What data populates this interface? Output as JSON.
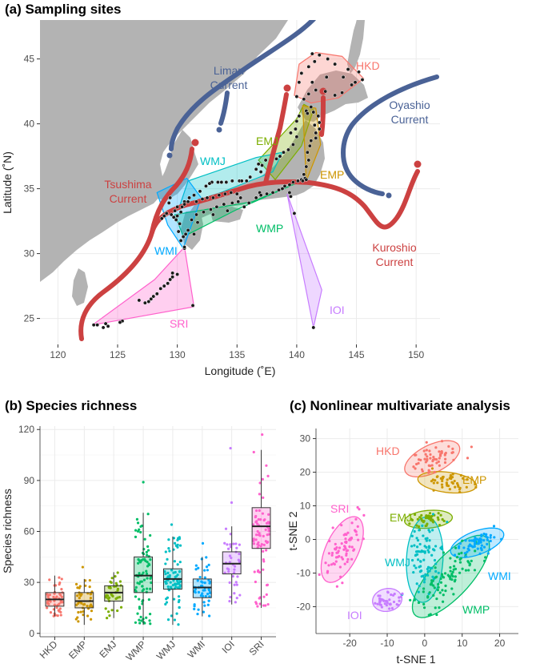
{
  "panels": {
    "a_title": "(a) Sampling sites",
    "b_title": "(b) Species richness",
    "c_title": "(c) Nonlinear multivariate analysis"
  },
  "colors": {
    "HKD": "#f8766d",
    "EMP": "#cd9600",
    "EMJ": "#7cae00",
    "WMP": "#00be67",
    "WMJ": "#00bfc4",
    "WMI": "#00a9ff",
    "IOI": "#c77cff",
    "SRI": "#ff61cc",
    "current_warm": "#cc4141",
    "current_cold": "#4a6296",
    "land": "#b3b3b3"
  },
  "chart_data": [
    {
      "type": "scatter",
      "panel": "a",
      "title": "(a) Sampling sites",
      "xlabel": "Longitude (˚E)",
      "ylabel": "Latitude (˚N)",
      "xlim": [
        118.5,
        152
      ],
      "ylim": [
        23,
        48
      ],
      "xticks": [
        120,
        125,
        130,
        135,
        140,
        145,
        150
      ],
      "yticks": [
        25,
        30,
        35,
        40,
        45
      ],
      "grid": true,
      "regions": [
        {
          "name": "HKD",
          "polygon": [
            [
              139.8,
              42.2
            ],
            [
              140.2,
              44.6
            ],
            [
              141.6,
              45.5
            ],
            [
              143.8,
              45.2
            ],
            [
              145.6,
              43.5
            ],
            [
              143.5,
              42.0
            ],
            [
              141.2,
              41.6
            ]
          ]
        },
        {
          "name": "EMJ",
          "polygon": [
            [
              136.8,
              37.2
            ],
            [
              140.0,
              40.4
            ],
            [
              140.6,
              41.5
            ],
            [
              141.4,
              41.1
            ],
            [
              140.4,
              38.3
            ],
            [
              138.2,
              35.7
            ]
          ]
        },
        {
          "name": "EMP",
          "polygon": [
            [
              140.5,
              41.4
            ],
            [
              141.6,
              41.2
            ],
            [
              142.0,
              38.4
            ],
            [
              140.8,
              35.6
            ]
          ]
        },
        {
          "name": "WMJ",
          "polygon": [
            [
              130.1,
              33.4
            ],
            [
              130.9,
              35.6
            ],
            [
              136.6,
              37.4
            ],
            [
              138.8,
              37.8
            ],
            [
              138.0,
              36.3
            ]
          ]
        },
        {
          "name": "WMP",
          "polygon": [
            [
              129.8,
              33.0
            ],
            [
              130.5,
              31.3
            ],
            [
              135.0,
              33.4
            ],
            [
              140.9,
              35.8
            ],
            [
              136.3,
              34.0
            ]
          ]
        },
        {
          "name": "WMI",
          "polygon": [
            [
              128.3,
              34.7
            ],
            [
              129.2,
              32.2
            ],
            [
              130.5,
              30.4
            ],
            [
              132.0,
              34.3
            ],
            [
              130.8,
              35.8
            ]
          ]
        },
        {
          "name": "IOI",
          "polygon": [
            [
              139.2,
              34.6
            ],
            [
              142.1,
              27.2
            ],
            [
              141.4,
              24.3
            ]
          ]
        },
        {
          "name": "SRI",
          "polygon": [
            [
              122.9,
              24.5
            ],
            [
              131.4,
              25.9
            ],
            [
              130.6,
              30.5
            ],
            [
              128.1,
              28.0
            ]
          ]
        }
      ],
      "sites": [
        [
          141.3,
          45.4
        ],
        [
          141.9,
          45.3
        ],
        [
          142.6,
          45.0
        ],
        [
          143.2,
          44.6
        ],
        [
          144.3,
          44.2
        ],
        [
          145.2,
          44.0
        ],
        [
          145.5,
          43.4
        ],
        [
          144.6,
          43.0
        ],
        [
          143.8,
          42.4
        ],
        [
          143.2,
          42.2
        ],
        [
          142.4,
          42.5
        ],
        [
          141.6,
          42.6
        ],
        [
          141.0,
          42.3
        ],
        [
          140.6,
          41.9
        ],
        [
          140.0,
          42.1
        ],
        [
          140.2,
          43.2
        ],
        [
          141.3,
          43.2
        ],
        [
          140.4,
          43.9
        ],
        [
          141.0,
          44.4
        ],
        [
          141.5,
          44.8
        ],
        [
          144.9,
          43.2
        ],
        [
          142.5,
          43.6
        ],
        [
          143.9,
          43.6
        ],
        [
          141.2,
          41.3
        ],
        [
          140.8,
          41.0
        ],
        [
          141.4,
          40.9
        ],
        [
          141.8,
          40.6
        ],
        [
          141.9,
          40.1
        ],
        [
          141.9,
          39.6
        ],
        [
          141.6,
          39.3
        ],
        [
          141.2,
          38.7
        ],
        [
          141.1,
          38.3
        ],
        [
          140.9,
          37.8
        ],
        [
          141.0,
          37.2
        ],
        [
          140.8,
          36.7
        ],
        [
          140.6,
          36.1
        ],
        [
          140.4,
          35.7
        ],
        [
          140.7,
          35.8
        ],
        [
          141.6,
          38.9
        ],
        [
          141.5,
          39.9
        ],
        [
          140.9,
          40.8
        ],
        [
          140.2,
          40.6
        ],
        [
          140.0,
          40.2
        ],
        [
          139.9,
          39.6
        ],
        [
          140.0,
          39.0
        ],
        [
          139.7,
          38.4
        ],
        [
          139.3,
          38.0
        ],
        [
          138.9,
          37.8
        ],
        [
          138.3,
          37.3
        ],
        [
          137.4,
          37.2
        ],
        [
          137.1,
          36.8
        ],
        [
          137.0,
          36.3
        ],
        [
          136.6,
          36.5
        ],
        [
          139.5,
          39.3
        ],
        [
          138.6,
          37.5
        ],
        [
          136.1,
          35.9
        ],
        [
          135.8,
          35.6
        ],
        [
          135.2,
          35.6
        ],
        [
          134.6,
          35.6
        ],
        [
          134.1,
          35.5
        ],
        [
          133.4,
          35.5
        ],
        [
          132.9,
          35.5
        ],
        [
          132.4,
          35.2
        ],
        [
          131.9,
          34.8
        ],
        [
          131.4,
          34.5
        ],
        [
          131.0,
          34.3
        ],
        [
          130.6,
          34.0
        ],
        [
          133.7,
          35.5
        ],
        [
          135.4,
          35.6
        ],
        [
          136.8,
          36.9
        ],
        [
          132.7,
          35.4
        ],
        [
          130.4,
          33.6
        ],
        [
          130.6,
          33.8
        ],
        [
          130.9,
          34.0
        ],
        [
          131.6,
          34.0
        ],
        [
          132.1,
          34.2
        ],
        [
          132.5,
          34.3
        ],
        [
          133.0,
          34.3
        ],
        [
          133.5,
          34.5
        ],
        [
          134.0,
          34.6
        ],
        [
          134.5,
          34.7
        ],
        [
          135.0,
          34.6
        ],
        [
          135.3,
          34.3
        ],
        [
          135.1,
          34.0
        ],
        [
          134.6,
          33.9
        ],
        [
          133.9,
          33.8
        ],
        [
          133.3,
          33.6
        ],
        [
          132.8,
          33.4
        ],
        [
          132.2,
          33.2
        ],
        [
          131.6,
          33.0
        ],
        [
          131.2,
          32.6
        ],
        [
          130.9,
          31.8
        ],
        [
          130.5,
          31.3
        ],
        [
          130.7,
          31.5
        ],
        [
          131.4,
          31.5
        ],
        [
          131.7,
          32.4
        ],
        [
          133.0,
          33.0
        ],
        [
          134.2,
          33.3
        ],
        [
          135.6,
          33.6
        ],
        [
          136.0,
          33.9
        ],
        [
          136.6,
          34.3
        ],
        [
          136.9,
          34.7
        ],
        [
          137.5,
          34.6
        ],
        [
          138.0,
          34.7
        ],
        [
          138.5,
          34.9
        ],
        [
          139.0,
          35.2
        ],
        [
          139.4,
          35.3
        ],
        [
          139.7,
          35.5
        ],
        [
          140.1,
          35.6
        ],
        [
          140.5,
          35.6
        ],
        [
          140.8,
          35.7
        ],
        [
          138.8,
          35.0
        ],
        [
          137.0,
          34.5
        ],
        [
          130.3,
          33.2
        ],
        [
          130.0,
          33.6
        ],
        [
          129.8,
          33.3
        ],
        [
          129.7,
          32.8
        ],
        [
          129.9,
          32.6
        ],
        [
          130.2,
          32.3
        ],
        [
          130.1,
          31.7
        ],
        [
          130.3,
          31.0
        ],
        [
          130.6,
          30.4
        ],
        [
          129.4,
          34.3
        ],
        [
          129.3,
          33.9
        ],
        [
          128.7,
          32.7
        ],
        [
          128.9,
          32.9
        ],
        [
          129.1,
          33.1
        ],
        [
          129.5,
          33.0
        ],
        [
          130.0,
          32.9
        ],
        [
          139.4,
          34.7
        ],
        [
          139.5,
          34.4
        ],
        [
          139.8,
          33.1
        ],
        [
          141.4,
          24.3
        ],
        [
          131.3,
          26.0
        ],
        [
          130.0,
          28.4
        ],
        [
          129.6,
          28.2
        ],
        [
          129.4,
          28.0
        ],
        [
          129.2,
          27.7
        ],
        [
          128.9,
          27.5
        ],
        [
          128.6,
          27.3
        ],
        [
          128.3,
          26.9
        ],
        [
          128.0,
          26.7
        ],
        [
          127.8,
          26.5
        ],
        [
          127.6,
          26.3
        ],
        [
          127.3,
          26.2
        ],
        [
          126.8,
          26.4
        ],
        [
          125.4,
          24.8
        ],
        [
          125.2,
          24.7
        ],
        [
          124.2,
          24.4
        ],
        [
          123.8,
          24.3
        ],
        [
          123.3,
          24.5
        ],
        [
          123.0,
          24.5
        ],
        [
          124.0,
          24.6
        ],
        [
          129.6,
          28.5
        ],
        [
          130.6,
          30.5
        ]
      ],
      "labels": [
        {
          "text": "HKD"
        },
        {
          "text": "EMJ"
        },
        {
          "text": "EMP"
        },
        {
          "text": "WMJ"
        },
        {
          "text": "WMP"
        },
        {
          "text": "WMI"
        },
        {
          "text": "IOI"
        },
        {
          "text": "SRI"
        }
      ],
      "currents": [
        {
          "name": "Liman Current",
          "label_lines": [
            "Liman",
            "Current"
          ],
          "kind": "cold"
        },
        {
          "name": "Oyashio Current",
          "label_lines": [
            "Oyashio",
            "Current"
          ],
          "kind": "cold"
        },
        {
          "name": "Tsushima Current",
          "label_lines": [
            "Tsushima",
            "Current"
          ],
          "kind": "warm"
        },
        {
          "name": "Kuroshio Current",
          "label_lines": [
            "Kuroshio",
            "Current"
          ],
          "kind": "warm"
        }
      ]
    },
    {
      "type": "box",
      "panel": "b",
      "title": "(b) Species richness",
      "xlabel": "",
      "ylabel": "Species richness",
      "ylim": [
        -2,
        122
      ],
      "yticks": [
        0,
        30,
        60,
        90,
        120
      ],
      "grid": true,
      "categories": [
        "HKD",
        "EMP",
        "EMJ",
        "WMP",
        "WMJ",
        "WMI",
        "IOI",
        "SRI"
      ],
      "boxes": [
        {
          "name": "HKD",
          "min": 10,
          "q1": 16,
          "median": 20,
          "q3": 24,
          "max": 34,
          "outliers": []
        },
        {
          "name": "EMP",
          "min": 5,
          "q1": 15,
          "median": 19,
          "q3": 24,
          "max": 32,
          "outliers": [
            39
          ]
        },
        {
          "name": "EMJ",
          "min": 9,
          "q1": 19,
          "median": 24,
          "q3": 28,
          "max": 36,
          "outliers": []
        },
        {
          "name": "WMP",
          "min": 5,
          "q1": 24,
          "median": 34,
          "q3": 45,
          "max": 71,
          "outliers": [
            89
          ]
        },
        {
          "name": "WMJ",
          "min": 5,
          "q1": 26,
          "median": 32,
          "q3": 38,
          "max": 57,
          "outliers": [
            64
          ]
        },
        {
          "name": "WMI",
          "min": 10,
          "q1": 21,
          "median": 27,
          "q3": 32,
          "max": 45,
          "outliers": [
            53
          ]
        },
        {
          "name": "IOI",
          "min": 17,
          "q1": 35,
          "median": 41,
          "q3": 48,
          "max": 63,
          "outliers": [
            77,
            109
          ]
        },
        {
          "name": "SRI",
          "min": 15,
          "q1": 50,
          "median": 63,
          "q3": 74,
          "max": 108,
          "outliers": [
            117
          ]
        }
      ]
    },
    {
      "type": "scatter",
      "panel": "c",
      "title": "(c) Nonlinear multivariate analysis",
      "xlabel": "t-SNE 1",
      "ylabel": "t-SNE 2",
      "xlim": [
        -29,
        25
      ],
      "ylim": [
        -28,
        33
      ],
      "xticks": [
        -20,
        -10,
        0,
        10,
        20
      ],
      "yticks": [
        -20,
        -10,
        0,
        10,
        20,
        30
      ],
      "grid": true,
      "clusters": [
        {
          "name": "HKD",
          "center": [
            2,
            24
          ],
          "sd": [
            3.0,
            2.2
          ],
          "rho": 0.55
        },
        {
          "name": "EMP",
          "center": [
            6,
            17
          ],
          "sd": [
            3.2,
            1.3
          ],
          "rho": -0.3
        },
        {
          "name": "EMJ",
          "center": [
            1,
            6
          ],
          "sd": [
            2.6,
            1.1
          ],
          "rho": 0.2
        },
        {
          "name": "WMJ",
          "center": [
            0,
            -6
          ],
          "sd": [
            2.0,
            5.2
          ],
          "rho": 0.1
        },
        {
          "name": "WMP",
          "center": [
            7,
            -11
          ],
          "sd": [
            4.2,
            5.0
          ],
          "rho": 0.75
        },
        {
          "name": "WMI",
          "center": [
            14,
            -1
          ],
          "sd": [
            2.9,
            1.8
          ],
          "rho": 0.55
        },
        {
          "name": "IOI",
          "center": [
            -10,
            -18
          ],
          "sd": [
            1.6,
            1.4
          ],
          "rho": 0.1
        },
        {
          "name": "SRI",
          "center": [
            -22,
            -3
          ],
          "sd": [
            2.3,
            4.0
          ],
          "rho": 0.55
        }
      ]
    }
  ]
}
